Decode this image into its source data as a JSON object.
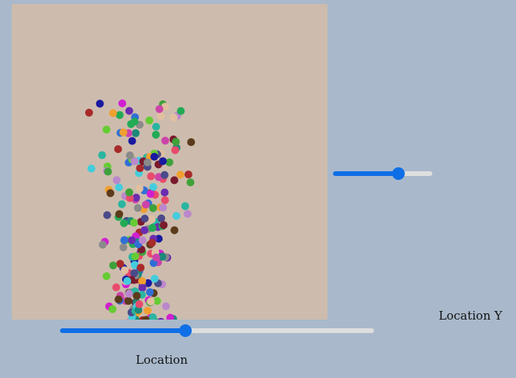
{
  "sliders": {
    "location_y": {
      "label": "Location Y",
      "value": 0.66,
      "accent": "#0f6fe6"
    },
    "location": {
      "label": "Location",
      "value": 0.4,
      "accent": "#0f6fe6"
    }
  },
  "canvas": {
    "background": "#cdbcad",
    "page_background": "#a9b9cb",
    "particle_count": 220,
    "particle_radius": 5,
    "particle_colors": [
      "#d01fd0",
      "#7a1a2e",
      "#2f6fd6",
      "#3fa13a",
      "#1a8a7a",
      "#6b2bb0",
      "#e84b6b",
      "#2ab5a0",
      "#f0a030",
      "#5b3b1b",
      "#1a1aa0",
      "#cc44aa",
      "#66cc33",
      "#44ccdd",
      "#8a8a8a",
      "#a82a2a",
      "#4a4a8a",
      "#22aa55",
      "#bb88cc",
      "#e0c0a0"
    ]
  }
}
